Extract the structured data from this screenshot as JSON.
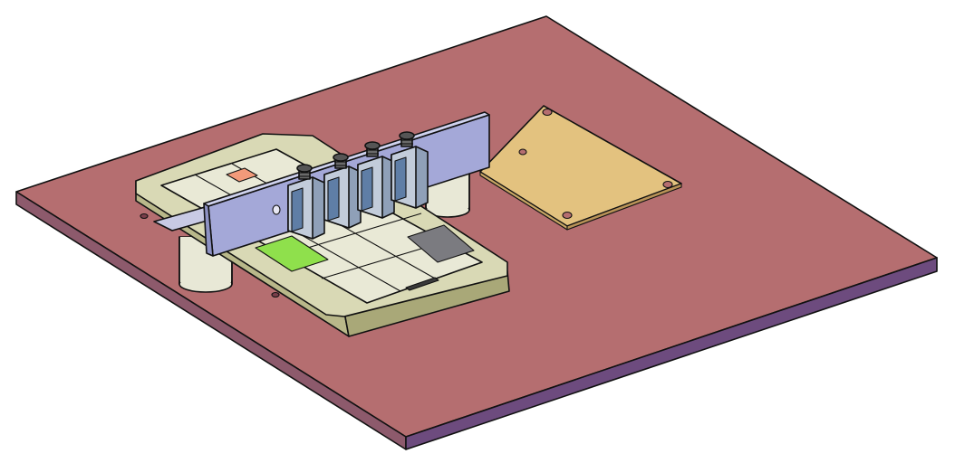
{
  "colors": {
    "background": "#ffffff",
    "base_plate_top": "#b56e70",
    "base_plate_side": "#8a4f70",
    "base_plate_front": "#6d4b7e",
    "pcb_board": "#e3c27f",
    "phone_body": "#d9d9b5",
    "phone_screen": "#e9e9d6",
    "phone_bezel": "#c8c79a",
    "green_zone": "#8fe04c",
    "gray_zone": "#7b7b80",
    "orange_pad": "#f29a7a",
    "bracket": "#a4a8d8",
    "standoff": "#e8e8d6",
    "solenoid_body": "#8fa0b8",
    "solenoid_window": "#5f7ea6",
    "spring": "#4a4a4a"
  },
  "objects": [
    "base-plate",
    "pcb-board",
    "smartphone",
    "mounting-bracket",
    "standoffs",
    "solenoid-actuators"
  ]
}
